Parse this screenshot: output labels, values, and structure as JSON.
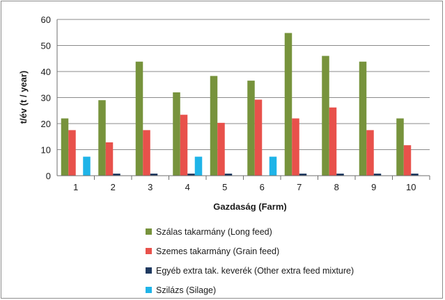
{
  "chart_data": {
    "type": "bar",
    "categories": [
      "1",
      "2",
      "3",
      "4",
      "5",
      "6",
      "7",
      "8",
      "9",
      "10"
    ],
    "series": [
      {
        "name": "Szálas takarmány (Long feed)",
        "color": "#77933c",
        "values": [
          22,
          29,
          43.8,
          32,
          38.3,
          36.5,
          54.8,
          46,
          43.8,
          22
        ]
      },
      {
        "name": "Szemes takarmány (Grain feed)",
        "color": "#e8514b",
        "values": [
          17.5,
          12.8,
          17.5,
          23.4,
          20.3,
          29.2,
          22,
          26.2,
          17.5,
          11.7
        ]
      },
      {
        "name": "Egyéb extra tak. keverék (Other extra feed mixture)",
        "color": "#1f3a60",
        "values": [
          0,
          0.8,
          0.8,
          0.8,
          0.8,
          0,
          0.8,
          0.8,
          0.8,
          0.8
        ]
      },
      {
        "name": "Szilázs (Silage)",
        "color": "#1fb4e8",
        "values": [
          7.3,
          0,
          0,
          7.3,
          0,
          7.3,
          0,
          0,
          0,
          0
        ]
      }
    ],
    "xlabel": "Gazdaság (Farm)",
    "ylabel": "t/év (t / year)",
    "ylim": [
      0,
      60
    ],
    "yticks": [
      0,
      10,
      20,
      30,
      40,
      50,
      60
    ],
    "grid": true,
    "legend": "bottom"
  }
}
